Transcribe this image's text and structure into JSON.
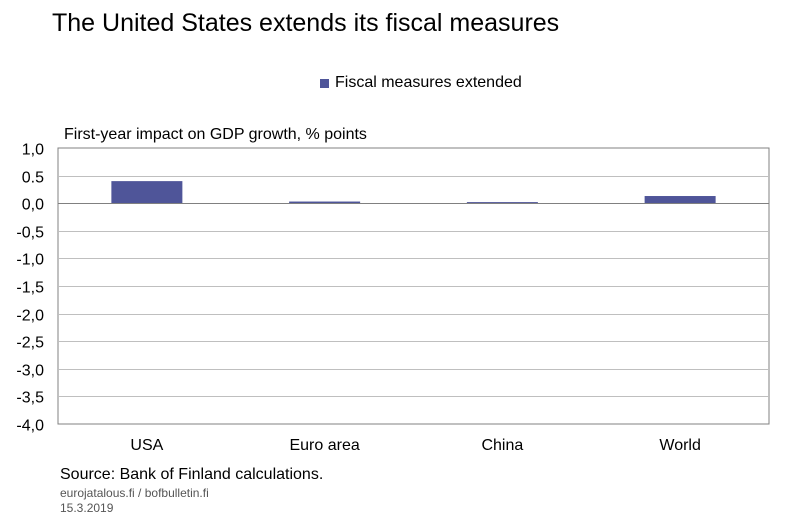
{
  "title": "The United States extends its fiscal measures",
  "subtitle": "First-year impact on GDP growth, % points",
  "source": "Source: Bank of Finland calculations.",
  "footer": {
    "site": "eurojatalous.fi / bofbulletin.fi",
    "date": "15.3.2019"
  },
  "colors": {
    "bar": "#4F5599",
    "grid": "#BFBFBF",
    "axis": "#808080"
  },
  "chart_data": {
    "type": "bar",
    "title": "The United States extends its fiscal measures",
    "ylabel": "First-year impact on GDP growth, % points",
    "xlabel": "",
    "categories": [
      "USA",
      "Euro area",
      "China",
      "World"
    ],
    "series": [
      {
        "name": "Fiscal measures extended",
        "values": [
          0.4,
          0.03,
          0.02,
          0.13
        ]
      }
    ],
    "ylim": [
      -4.0,
      1.0
    ],
    "yticks": [
      1.0,
      0.5,
      0.0,
      -0.5,
      -1.0,
      -1.5,
      -2.0,
      -2.5,
      -3.0,
      -3.5,
      -4.0
    ],
    "ytick_labels": [
      "1,0",
      "0.5",
      "0,0",
      "-0,5",
      "-1,0",
      "-1,5",
      "-2,0",
      "-2,5",
      "-3,0",
      "-3,5",
      "-4,0"
    ],
    "grid": true,
    "legend": "top-center"
  }
}
